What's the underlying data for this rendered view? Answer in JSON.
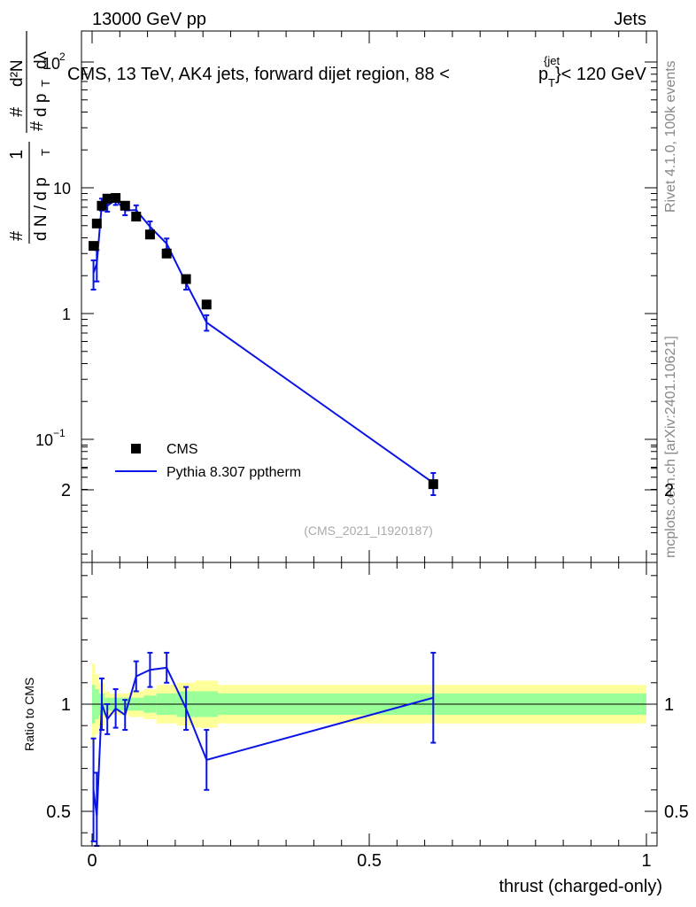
{
  "header": {
    "energy_label": "13000 GeV pp",
    "category_label": "Jets",
    "title_prefix": "CMS, 13 TeV, AK4 jets, forward dijet region, 88 <",
    "title_pt": "p",
    "title_sub": "T",
    "title_sup": "{jet",
    "title_suffix": "}< 120 GeV"
  },
  "side": {
    "rivet": "Rivet 4.1.0,  100k events",
    "mcplots": "mcplots.cern.ch [arXiv:2401.10621]"
  },
  "colors": {
    "mc": "#0a14e6",
    "data": "#000000",
    "band_inner": "#99ff99",
    "band_outer": "#ffff99"
  },
  "chart_data": [
    {
      "type": "scatter",
      "yscale": "log",
      "ylabel": "1/(dN/dp_T) d²N/(dp_T dλ)",
      "ylabel_parts": {
        "one": "1",
        "dN": "d N / d p",
        "T": "T",
        "hash": "#",
        "num": "d²N",
        "den": "d p",
        "lam": "dλ"
      },
      "xlim": [
        0,
        1
      ],
      "ylim": [
        0.012,
        180
      ],
      "ytick_labels": {
        "hundred": "10",
        "hundred_exp": "2",
        "ten": "10",
        "one": "1",
        "tenth": "10",
        "tenth_exp": "−1"
      },
      "watermark": "(CMS_2021_I1920187)",
      "legend": [
        {
          "name": "CMS",
          "marker": "square"
        },
        {
          "name": "Pythia 8.307 pptherm",
          "marker": "line"
        }
      ],
      "series": [
        {
          "name": "CMS",
          "x": [
            0.0025,
            0.0085,
            0.0175,
            0.0275,
            0.0425,
            0.0595,
            0.0795,
            0.1045,
            0.1345,
            0.1695,
            0.2065,
            0.6155
          ],
          "y": [
            3.45,
            5.2,
            7.2,
            8.2,
            8.3,
            7.2,
            5.9,
            4.25,
            3.0,
            1.88,
            1.18,
            0.044
          ]
        },
        {
          "name": "Pythia 8.307 pptherm",
          "x": [
            0.0025,
            0.0085,
            0.0175,
            0.0275,
            0.0425,
            0.0595,
            0.0795,
            0.1045,
            0.1345,
            0.1695,
            0.2065,
            0.6155
          ],
          "y": [
            2.1,
            2.5,
            7.4,
            7.2,
            8.0,
            6.6,
            6.65,
            4.9,
            3.6,
            1.75,
            0.85,
            0.045
          ],
          "yerr": [
            0.55,
            0.7,
            0.8,
            0.75,
            0.7,
            0.55,
            0.6,
            0.5,
            0.35,
            0.2,
            0.12,
            0.009
          ]
        }
      ]
    },
    {
      "type": "line",
      "ylabel": "Ratio to CMS",
      "xlabel": "thrust (charged-only)",
      "xlim": [
        0,
        1
      ],
      "ylim": [
        0.35,
        2.3
      ],
      "x_tick_labels": [
        "0",
        "0.5",
        "1"
      ],
      "x_tick_values": [
        0,
        0.5,
        1
      ],
      "y_tick_labels": [
        "0.5",
        "1",
        "2"
      ],
      "y_tick_values": [
        0.5,
        1,
        2
      ],
      "bands": {
        "x_edges": [
          0,
          0.005,
          0.012,
          0.023,
          0.032,
          0.053,
          0.066,
          0.093,
          0.116,
          0.153,
          0.186,
          0.227,
          1.0
        ],
        "outer_half_width": [
          0.19,
          0.14,
          0.1,
          0.06,
          0.05,
          0.05,
          0.06,
          0.07,
          0.09,
          0.1,
          0.11,
          0.09
        ],
        "inner_half_width": [
          0.09,
          0.07,
          0.05,
          0.03,
          0.03,
          0.03,
          0.03,
          0.04,
          0.05,
          0.06,
          0.06,
          0.05
        ]
      },
      "series": [
        {
          "name": "Pythia 8.307 pptherm / CMS",
          "x": [
            0.0025,
            0.0085,
            0.0175,
            0.0275,
            0.0425,
            0.0595,
            0.0795,
            0.1045,
            0.1345,
            0.1695,
            0.2065,
            0.6155
          ],
          "y": [
            0.6,
            0.48,
            1.0,
            0.93,
            0.98,
            0.95,
            1.13,
            1.16,
            1.17,
            0.98,
            0.74,
            1.03
          ],
          "yerr": [
            0.24,
            0.2,
            0.12,
            0.07,
            0.09,
            0.07,
            0.07,
            0.08,
            0.07,
            0.1,
            0.14,
            0.21
          ]
        }
      ]
    }
  ]
}
